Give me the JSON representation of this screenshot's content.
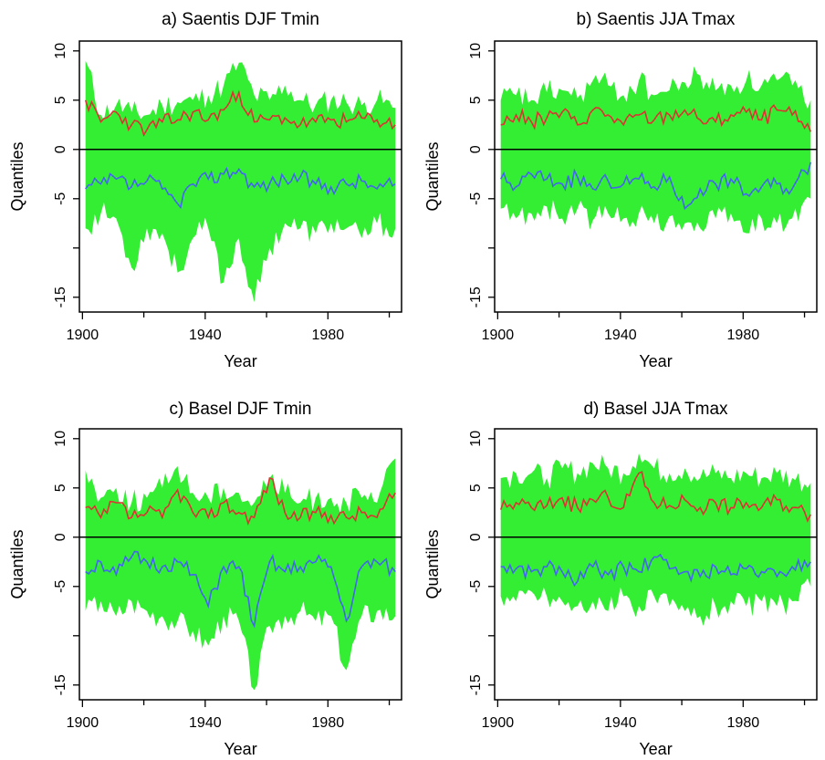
{
  "colors": {
    "band": "#33ee33",
    "upper_line": "#dd3333",
    "lower_line": "#4466ee",
    "zero_line": "#000000",
    "axes": "#000000"
  },
  "chart_data": [
    {
      "type": "area",
      "title": "a) Saentis DJF Tmin",
      "xlabel": "Year",
      "ylabel": "Quantiles",
      "xlim": [
        1899,
        2004
      ],
      "ylim": [
        -16.5,
        11
      ],
      "xticks": [
        1900,
        1940,
        1980
      ],
      "yticks": [
        10,
        5,
        0,
        -5,
        -15
      ],
      "x": [
        1901,
        1906,
        1911,
        1916,
        1921,
        1926,
        1931,
        1936,
        1941,
        1946,
        1951,
        1956,
        1961,
        1966,
        1971,
        1976,
        1981,
        1986,
        1991,
        1996,
        2002
      ],
      "series": [
        {
          "role": "upper_band",
          "values": [
            9.0,
            3.5,
            4.5,
            3.8,
            3.5,
            4.5,
            4.8,
            5.0,
            5.5,
            6.5,
            8.8,
            5.5,
            5.0,
            6.5,
            5.0,
            4.5,
            5.0,
            4.8,
            4.5,
            5.0,
            4.2
          ]
        },
        {
          "role": "upper_line",
          "values": [
            5.0,
            2.8,
            3.8,
            2.5,
            2.0,
            2.8,
            3.0,
            3.8,
            3.0,
            4.0,
            5.8,
            2.8,
            3.0,
            3.2,
            2.5,
            2.8,
            3.0,
            2.8,
            3.2,
            3.0,
            2.5
          ]
        },
        {
          "role": "lower_line",
          "values": [
            -4.0,
            -3.5,
            -3.0,
            -3.8,
            -3.2,
            -4.0,
            -5.5,
            -3.5,
            -3.0,
            -2.5,
            -2.0,
            -3.8,
            -3.5,
            -3.0,
            -2.8,
            -3.5,
            -3.8,
            -3.5,
            -3.2,
            -4.0,
            -3.5
          ]
        },
        {
          "role": "lower_band",
          "values": [
            -8.0,
            -6.5,
            -7.0,
            -12.0,
            -8.0,
            -8.5,
            -12.5,
            -9.0,
            -8.0,
            -13.5,
            -9.0,
            -15.5,
            -10.0,
            -7.5,
            -8.0,
            -8.5,
            -7.5,
            -8.0,
            -9.0,
            -7.5,
            -8.0
          ]
        }
      ]
    },
    {
      "type": "area",
      "title": "b) Saentis JJA Tmax",
      "xlabel": "Year",
      "ylabel": "Quantiles",
      "xlim": [
        1899,
        2004
      ],
      "ylim": [
        -16.5,
        11
      ],
      "xticks": [
        1900,
        1940,
        1980
      ],
      "yticks": [
        10,
        5,
        0,
        -5,
        -15
      ],
      "x": [
        1901,
        1906,
        1911,
        1916,
        1921,
        1926,
        1931,
        1936,
        1941,
        1946,
        1951,
        1956,
        1961,
        1966,
        1971,
        1976,
        1981,
        1986,
        1991,
        1996,
        2002
      ],
      "series": [
        {
          "role": "upper_band",
          "values": [
            5.0,
            5.5,
            5.0,
            5.8,
            6.0,
            5.2,
            7.0,
            6.5,
            5.5,
            7.0,
            5.5,
            6.0,
            6.8,
            7.5,
            6.0,
            6.5,
            7.0,
            6.5,
            7.0,
            6.5,
            5.0
          ]
        },
        {
          "role": "upper_line",
          "values": [
            2.5,
            3.5,
            2.8,
            3.2,
            3.8,
            2.5,
            4.0,
            3.5,
            2.5,
            3.5,
            3.0,
            3.5,
            4.0,
            3.0,
            2.8,
            3.5,
            3.8,
            3.0,
            4.0,
            3.5,
            1.8
          ]
        },
        {
          "role": "lower_line",
          "values": [
            -3.0,
            -3.8,
            -2.5,
            -3.0,
            -3.5,
            -2.8,
            -4.0,
            -3.2,
            -3.5,
            -3.0,
            -3.8,
            -2.8,
            -6.0,
            -4.0,
            -3.5,
            -3.0,
            -4.5,
            -3.8,
            -3.5,
            -4.0,
            -1.3
          ]
        },
        {
          "role": "lower_band",
          "values": [
            -6.0,
            -7.0,
            -6.5,
            -5.8,
            -7.0,
            -6.0,
            -7.2,
            -6.5,
            -7.0,
            -6.5,
            -7.5,
            -6.8,
            -7.5,
            -8.0,
            -7.0,
            -6.5,
            -8.5,
            -7.0,
            -7.5,
            -7.0,
            -5.0
          ]
        }
      ]
    },
    {
      "type": "area",
      "title": "c) Basel DJF Tmin",
      "xlabel": "Year",
      "ylabel": "Quantiles",
      "xlim": [
        1899,
        2004
      ],
      "ylim": [
        -16.5,
        11
      ],
      "xticks": [
        1900,
        1940,
        1980
      ],
      "yticks": [
        10,
        5,
        0,
        -5,
        -15
      ],
      "x": [
        1901,
        1906,
        1911,
        1916,
        1921,
        1926,
        1931,
        1936,
        1941,
        1946,
        1951,
        1956,
        1961,
        1966,
        1971,
        1976,
        1981,
        1986,
        1991,
        1996,
        2002
      ],
      "series": [
        {
          "role": "upper_band",
          "values": [
            6.8,
            4.0,
            5.0,
            3.5,
            4.0,
            5.0,
            7.2,
            4.5,
            4.0,
            5.0,
            4.5,
            3.5,
            6.0,
            4.5,
            3.5,
            4.0,
            4.0,
            3.5,
            4.0,
            3.5,
            8.0
          ]
        },
        {
          "role": "upper_line",
          "values": [
            3.0,
            2.0,
            3.5,
            2.0,
            2.5,
            2.0,
            4.8,
            2.5,
            2.0,
            3.5,
            2.5,
            2.0,
            6.0,
            2.5,
            2.0,
            2.5,
            2.2,
            2.0,
            2.5,
            2.0,
            4.5
          ]
        },
        {
          "role": "lower_line",
          "values": [
            -3.5,
            -2.5,
            -3.8,
            -2.0,
            -2.5,
            -3.0,
            -2.5,
            -3.8,
            -7.0,
            -3.0,
            -3.0,
            -9.0,
            -2.5,
            -3.5,
            -3.0,
            -2.5,
            -3.0,
            -8.5,
            -3.0,
            -2.5,
            -3.5
          ]
        },
        {
          "role": "lower_band",
          "values": [
            -7.5,
            -6.5,
            -8.0,
            -6.5,
            -7.5,
            -8.0,
            -8.5,
            -9.5,
            -11.0,
            -8.0,
            -8.5,
            -15.5,
            -9.0,
            -8.0,
            -7.5,
            -8.5,
            -8.0,
            -13.5,
            -8.0,
            -7.5,
            -8.0
          ]
        }
      ]
    },
    {
      "type": "area",
      "title": "d) Basel JJA Tmax",
      "xlabel": "Year",
      "ylabel": "Quantiles",
      "xlim": [
        1899,
        2004
      ],
      "ylim": [
        -16.5,
        11
      ],
      "xticks": [
        1900,
        1940,
        1980
      ],
      "yticks": [
        10,
        5,
        0,
        -5,
        -15
      ],
      "x": [
        1901,
        1906,
        1911,
        1916,
        1921,
        1926,
        1931,
        1936,
        1941,
        1946,
        1951,
        1956,
        1961,
        1966,
        1971,
        1976,
        1981,
        1986,
        1991,
        1996,
        2002
      ],
      "series": [
        {
          "role": "upper_band",
          "values": [
            6.0,
            6.5,
            6.5,
            6.0,
            7.0,
            6.5,
            7.5,
            7.0,
            6.5,
            8.5,
            7.0,
            6.5,
            7.0,
            6.0,
            6.5,
            6.0,
            6.5,
            6.0,
            6.5,
            6.0,
            5.5
          ]
        },
        {
          "role": "upper_line",
          "values": [
            2.8,
            3.5,
            3.0,
            3.2,
            4.0,
            3.0,
            3.8,
            4.0,
            3.0,
            6.5,
            3.5,
            3.2,
            3.8,
            3.0,
            3.5,
            3.0,
            3.5,
            3.0,
            3.8,
            3.0,
            2.3
          ]
        },
        {
          "role": "lower_line",
          "values": [
            -3.0,
            -3.2,
            -3.5,
            -3.0,
            -3.5,
            -4.5,
            -3.0,
            -3.8,
            -3.0,
            -3.5,
            -2.0,
            -3.2,
            -3.5,
            -4.0,
            -3.0,
            -3.8,
            -3.2,
            -3.5,
            -4.0,
            -3.0,
            -2.5
          ]
        },
        {
          "role": "lower_band",
          "values": [
            -6.0,
            -6.5,
            -5.5,
            -6.0,
            -6.5,
            -7.0,
            -6.5,
            -7.5,
            -6.0,
            -7.0,
            -6.0,
            -7.0,
            -7.5,
            -8.0,
            -7.0,
            -6.5,
            -7.0,
            -6.5,
            -7.0,
            -6.5,
            -5.0
          ]
        }
      ]
    }
  ]
}
